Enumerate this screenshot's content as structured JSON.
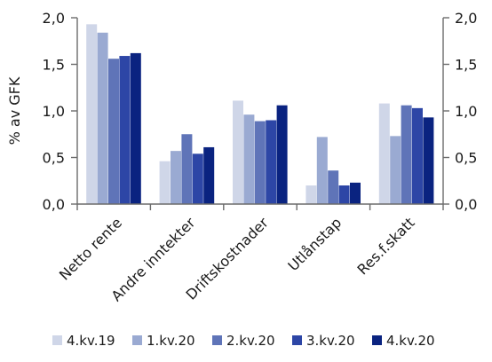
{
  "chart_data": {
    "type": "bar",
    "ylabel": "% av GFK",
    "ylim": [
      0,
      2.0
    ],
    "yticks": [
      "0,0",
      "0,5",
      "1,0",
      "1,5",
      "2,0"
    ],
    "ytick_values": [
      0,
      0.5,
      1.0,
      1.5,
      2.0
    ],
    "categories": [
      "Netto rente",
      "Andre inntekter",
      "Driftskostnader",
      "Utlånstap",
      "Res.f.skatt"
    ],
    "series": [
      {
        "name": "4.kv.19",
        "color": "#cfd6e8",
        "values": [
          1.93,
          0.46,
          1.11,
          0.2,
          1.08
        ]
      },
      {
        "name": "1.kv.20",
        "color": "#9aaad2",
        "values": [
          1.84,
          0.57,
          0.96,
          0.72,
          0.73
        ]
      },
      {
        "name": "2.kv.20",
        "color": "#5f74b8",
        "values": [
          1.56,
          0.75,
          0.89,
          0.36,
          1.06
        ]
      },
      {
        "name": "3.kv.20",
        "color": "#2d46a6",
        "values": [
          1.59,
          0.54,
          0.9,
          0.2,
          1.03
        ]
      },
      {
        "name": "4.kv.20",
        "color": "#0a2380",
        "values": [
          1.62,
          0.61,
          1.06,
          0.23,
          0.93
        ]
      }
    ],
    "grid": false,
    "secondary_axis": true,
    "legend_position": "bottom"
  }
}
